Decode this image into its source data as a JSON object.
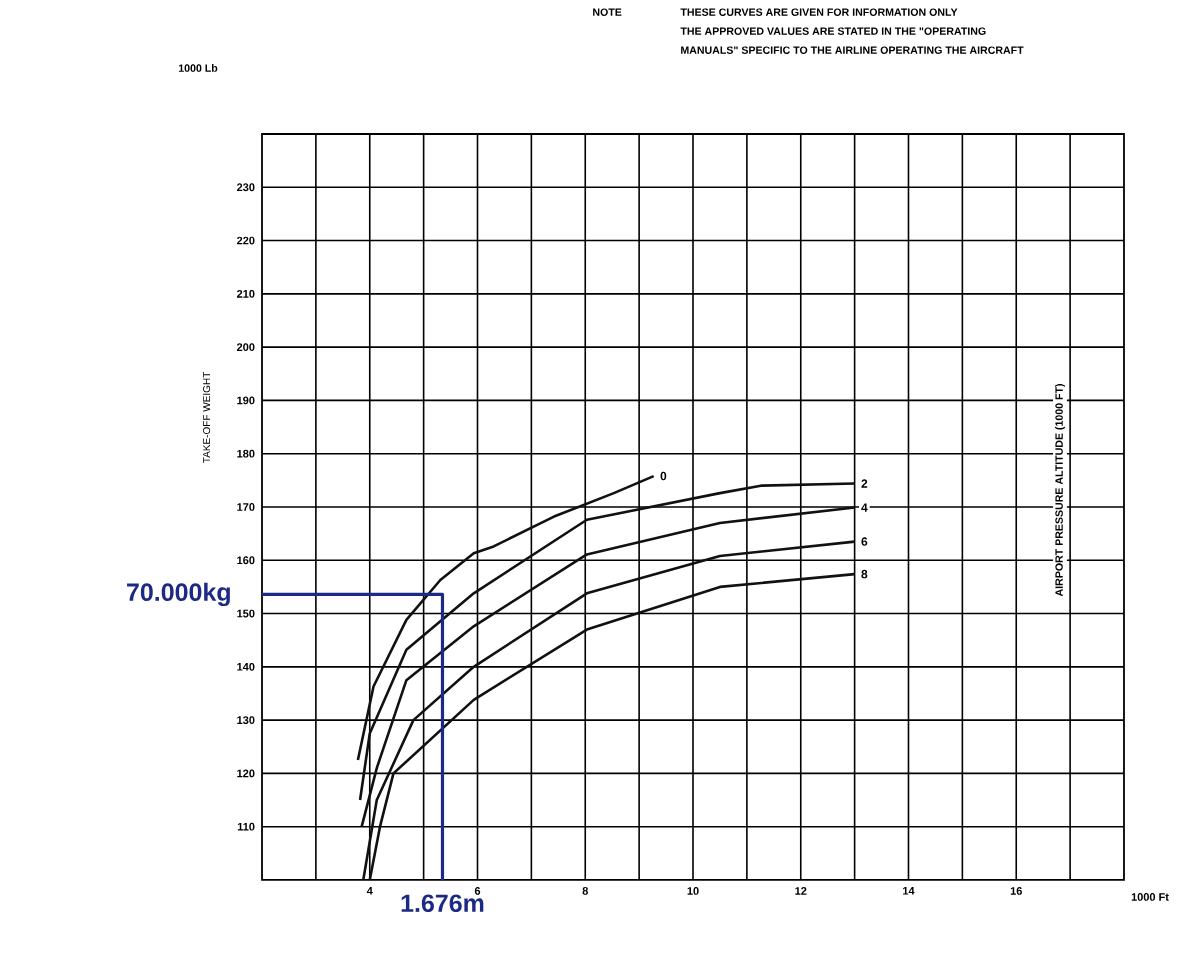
{
  "chart_data": {
    "type": "line",
    "xlabel": "1000 Ft",
    "ylabel": "TAKE-OFF WEIGHT",
    "annotations": [
      "NOTE",
      "THESE CURVES ARE GIVEN FOR INFORMATION ONLY",
      "THE APPROVED VALUES ARE STATED IN THE \"OPERATING",
      "MANUALS\" SPECIFIC TO THE AIRLINE OPERATING THE AIRCRAFT",
      "1000 Lb",
      "AIRPORT PRESSURE ALTITUDE (1000 FT)",
      {
        "text": "70.000kg",
        "x": 2,
        "y": 153.6
      },
      {
        "text": "1.676m",
        "x": 5.35,
        "y": 100
      }
    ],
    "xlim": [
      2,
      18
    ],
    "ylim": [
      100,
      240
    ],
    "xticks": [
      {
        "value": 3,
        "label": null
      },
      4,
      {
        "value": 5,
        "label": null
      },
      6,
      {
        "value": 7,
        "label": null
      },
      8,
      {
        "value": 9,
        "label": null
      },
      10,
      {
        "value": 11,
        "label": null
      },
      12,
      {
        "value": 13,
        "label": null
      },
      14,
      {
        "value": 15,
        "label": null
      },
      16,
      {
        "value": 17,
        "label": null
      }
    ],
    "yticks": [
      110,
      120,
      130,
      140,
      150,
      160,
      170,
      180,
      190,
      200,
      210,
      220,
      230
    ],
    "grid": true,
    "series": [
      {
        "name": "0",
        "color": "#111111",
        "x": [
          3.78,
          4.07,
          4.68,
          5.31,
          5.93,
          6.3,
          7.42,
          8.53,
          9.27
        ],
        "values": [
          122.5,
          136.3,
          148.8,
          156.3,
          161.3,
          162.6,
          168.2,
          172.6,
          175.8
        ]
      },
      {
        "name": "2",
        "color": "#111111",
        "x": [
          3.82,
          4.0,
          4.68,
          5.93,
          8.03,
          10.5,
          11.26,
          13.0
        ],
        "values": [
          115,
          127.5,
          143.2,
          153.8,
          167.6,
          172.6,
          174,
          174.4
        ]
      },
      {
        "name": "4",
        "color": "#111111",
        "x": [
          3.85,
          4.13,
          4.68,
          5.93,
          8.03,
          10.5,
          13.0
        ],
        "values": [
          110,
          121,
          137.5,
          147.6,
          161.1,
          167,
          169.9
        ]
      },
      {
        "name": "6",
        "color": "#111111",
        "x": [
          3.88,
          4.13,
          4.81,
          5.93,
          8.03,
          10.5,
          13.0
        ],
        "values": [
          100,
          115,
          130,
          140,
          153.8,
          160.8,
          163.5
        ]
      },
      {
        "name": "8",
        "color": "#111111",
        "x": [
          4.0,
          4.19,
          4.44,
          5.93,
          8.03,
          10.5,
          13.0
        ],
        "values": [
          100,
          110,
          120,
          133.8,
          147,
          155,
          157.4
        ]
      },
      {
        "type": "line",
        "color": "#1c2a85",
        "x": [
          2,
          5.35,
          5.35
        ],
        "values": [
          153.6,
          153.6,
          100
        ]
      }
    ]
  }
}
